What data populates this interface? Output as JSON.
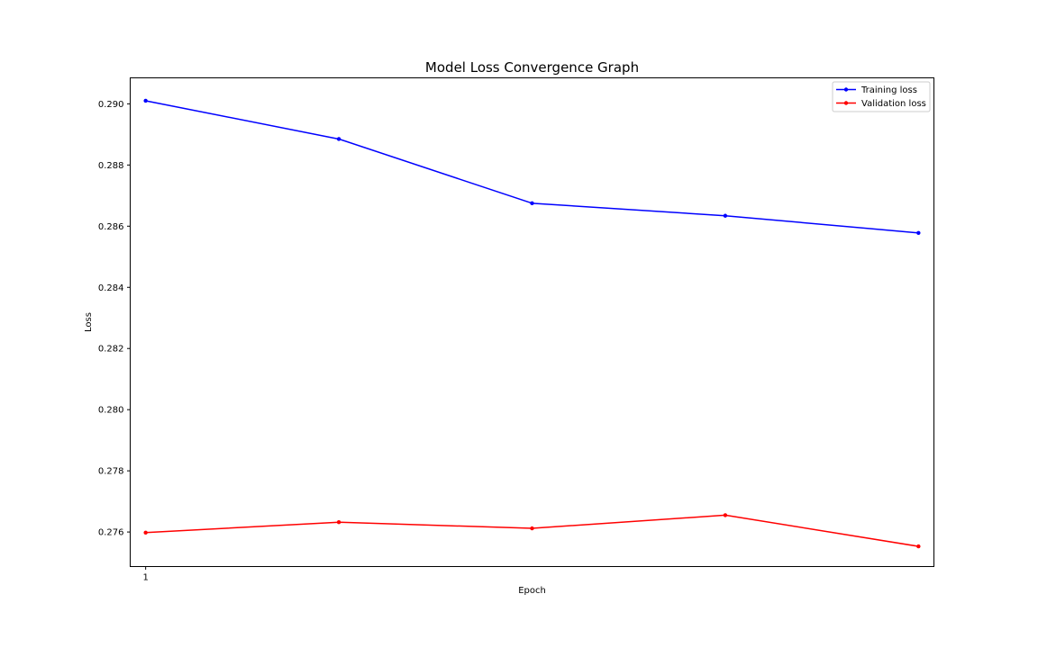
{
  "chart_data": {
    "type": "line",
    "title": "Model Loss Convergence Graph",
    "xlabel": "Epoch",
    "ylabel": "Loss",
    "x": [
      1,
      2,
      3,
      4,
      5
    ],
    "x_tick_labels": [
      {
        "x": 1,
        "label": "1"
      }
    ],
    "xlim": [
      0.92,
      5.08
    ],
    "ylim": [
      0.27487,
      0.29085
    ],
    "y_ticks": [
      0.276,
      0.278,
      0.28,
      0.282,
      0.284,
      0.286,
      0.288,
      0.29
    ],
    "y_tick_labels": [
      "0.276",
      "0.278",
      "0.280",
      "0.282",
      "0.284",
      "0.286",
      "0.288",
      "0.290"
    ],
    "grid": false,
    "legend_position": "top-right",
    "series": [
      {
        "name": "Training loss",
        "color": "#0000ff",
        "marker": "dot",
        "values": [
          0.2901,
          0.28885,
          0.28675,
          0.28634,
          0.28578
        ]
      },
      {
        "name": "Validation loss",
        "color": "#ff0000",
        "marker": "dot",
        "values": [
          0.27598,
          0.27632,
          0.27612,
          0.27655,
          0.27553
        ]
      }
    ]
  }
}
